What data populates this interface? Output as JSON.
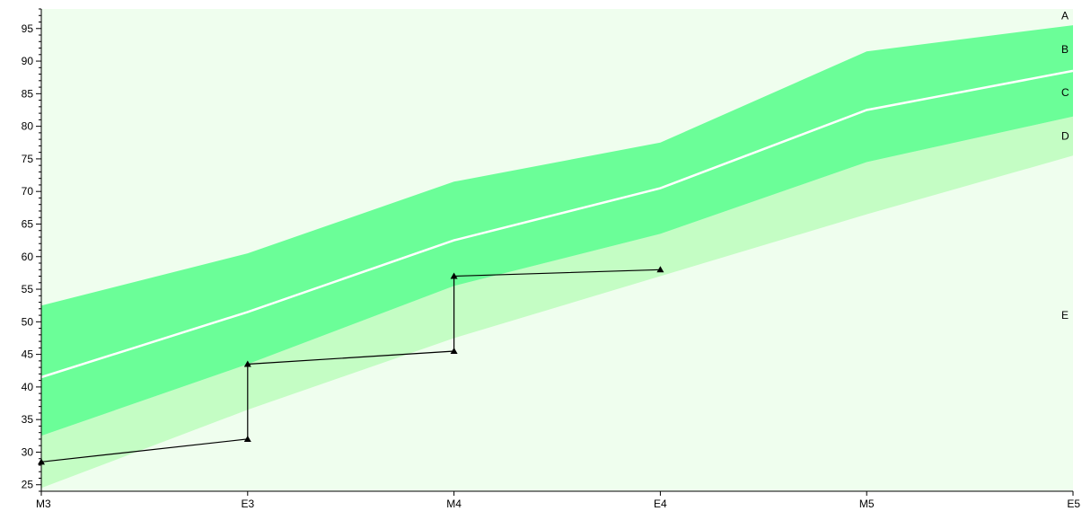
{
  "chart_data": {
    "type": "area",
    "categories": [
      "M3",
      "E3",
      "M4",
      "E4",
      "M5",
      "E5"
    ],
    "ylim": [
      24,
      98
    ],
    "yticks": [
      25,
      30,
      35,
      40,
      45,
      50,
      55,
      60,
      65,
      70,
      75,
      80,
      85,
      90,
      95
    ],
    "grid": false,
    "bands": {
      "upper_B": [
        52.5,
        60.5,
        71.5,
        77.5,
        91.5,
        95.5
      ],
      "median_C": [
        41.5,
        51.5,
        62.5,
        70.5,
        82.5,
        88.5
      ],
      "lower_C": [
        32.5,
        43.5,
        55.5,
        63.5,
        74.5,
        81.5
      ],
      "lower_D": [
        24.5,
        36.5,
        47.5,
        57.0,
        66.5,
        75.5
      ]
    },
    "band_labels": [
      {
        "text": "A",
        "value": 97.0
      },
      {
        "text": "B",
        "value": 91.8
      },
      {
        "text": "C",
        "value": 85.2
      },
      {
        "text": "D",
        "value": 78.5
      },
      {
        "text": "E",
        "value": 51.0
      }
    ],
    "series": [
      {
        "x": [
          0,
          1,
          1,
          2,
          2,
          3
        ],
        "values": [
          28.5,
          32.0,
          43.5,
          45.5,
          57.0,
          58.0
        ]
      }
    ],
    "colors": {
      "background": "#effeee",
      "band_outer": "#c4fdc4",
      "band_inner": "#6bfe98",
      "median_line": "#ffffff",
      "series_line": "#000000",
      "axis": "#000000"
    }
  }
}
